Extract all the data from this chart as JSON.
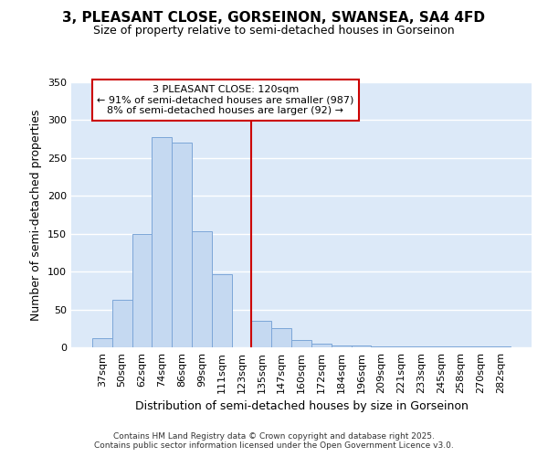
{
  "title": "3, PLEASANT CLOSE, GORSEINON, SWANSEA, SA4 4FD",
  "subtitle": "Size of property relative to semi-detached houses in Gorseinon",
  "xlabel": "Distribution of semi-detached houses by size in Gorseinon",
  "ylabel": "Number of semi-detached properties",
  "categories": [
    "37sqm",
    "50sqm",
    "62sqm",
    "74sqm",
    "86sqm",
    "99sqm",
    "111sqm",
    "123sqm",
    "135sqm",
    "147sqm",
    "160sqm",
    "172sqm",
    "184sqm",
    "196sqm",
    "209sqm",
    "221sqm",
    "233sqm",
    "245sqm",
    "258sqm",
    "270sqm",
    "282sqm"
  ],
  "values": [
    12,
    63,
    150,
    278,
    270,
    153,
    97,
    0,
    35,
    25,
    10,
    5,
    2,
    2,
    1,
    1,
    1,
    1,
    1,
    1,
    1
  ],
  "bar_color": "#c5d9f1",
  "bar_edge_color": "#7ca6d8",
  "background_color": "#ffffff",
  "plot_bg_color": "#dce9f8",
  "grid_color": "#ffffff",
  "red_line_x": 7.5,
  "red_line_color": "#cc0000",
  "annotation_text": "3 PLEASANT CLOSE: 120sqm\n← 91% of semi-detached houses are smaller (987)\n8% of semi-detached houses are larger (92) →",
  "annotation_box_color": "#ffffff",
  "annotation_box_edge_color": "#cc0000",
  "ylim": [
    0,
    350
  ],
  "yticks": [
    0,
    50,
    100,
    150,
    200,
    250,
    300,
    350
  ],
  "footer_text": "Contains HM Land Registry data © Crown copyright and database right 2025.\nContains public sector information licensed under the Open Government Licence v3.0.",
  "title_fontsize": 11,
  "subtitle_fontsize": 9,
  "tick_fontsize": 8,
  "label_fontsize": 9
}
